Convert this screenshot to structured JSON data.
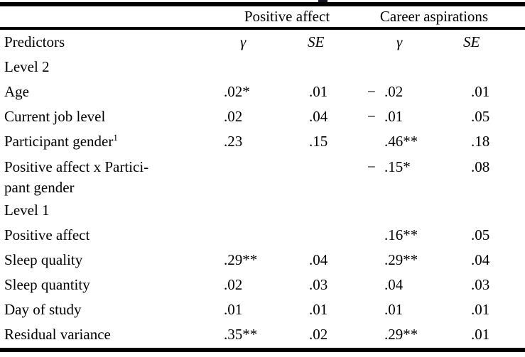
{
  "table": {
    "group_headers": [
      "Positive affect",
      "Career aspirations"
    ],
    "col_headers": {
      "predictors": "Predictors",
      "gamma1": "γ",
      "se1": "SE",
      "gamma2": "γ",
      "se2": "SE"
    },
    "rows": [
      {
        "type": "section",
        "label": "Level 2",
        "pa_gamma": "",
        "pa_se": "",
        "ca_gamma": "",
        "ca_se": ""
      },
      {
        "type": "data",
        "label": "Age",
        "pa_gamma": ".02*",
        "pa_se": ".01",
        "ca_gamma": "−.02",
        "ca_se": ".01"
      },
      {
        "type": "data",
        "label": "Current job level",
        "pa_gamma": ".02",
        "pa_se": ".04",
        "ca_gamma": "−.01",
        "ca_se": ".05"
      },
      {
        "type": "data",
        "label": "Participant gender",
        "label_sup": "1",
        "pa_gamma": ".23",
        "pa_se": ".15",
        "ca_gamma": ".46**",
        "ca_se": ".18"
      },
      {
        "type": "data",
        "label": "Positive affect x Partici-",
        "label_line2": "pant gender",
        "two_line": true,
        "pa_gamma": "",
        "pa_se": "",
        "ca_gamma": "−.15*",
        "ca_se": ".08"
      },
      {
        "type": "section",
        "label": "Level 1",
        "pa_gamma": "",
        "pa_se": "",
        "ca_gamma": "",
        "ca_se": ""
      },
      {
        "type": "data",
        "label": "Positive affect",
        "pa_gamma": "",
        "pa_se": "",
        "ca_gamma": ".16**",
        "ca_se": ".05"
      },
      {
        "type": "data",
        "label": "Sleep quality",
        "pa_gamma": ".29**",
        "pa_se": ".04",
        "ca_gamma": ".29**",
        "ca_se": ".04"
      },
      {
        "type": "data",
        "label": "Sleep quantity",
        "pa_gamma": ".02",
        "pa_se": ".03",
        "ca_gamma": ".04",
        "ca_se": ".03"
      },
      {
        "type": "data",
        "label": "Day of study",
        "pa_gamma": ".01",
        "pa_se": ".01",
        "ca_gamma": ".01",
        "ca_se": ".01"
      },
      {
        "type": "data",
        "label": "Residual variance",
        "pa_gamma": ".35**",
        "pa_se": ".02",
        "ca_gamma": ".29**",
        "ca_se": ".01"
      }
    ]
  }
}
